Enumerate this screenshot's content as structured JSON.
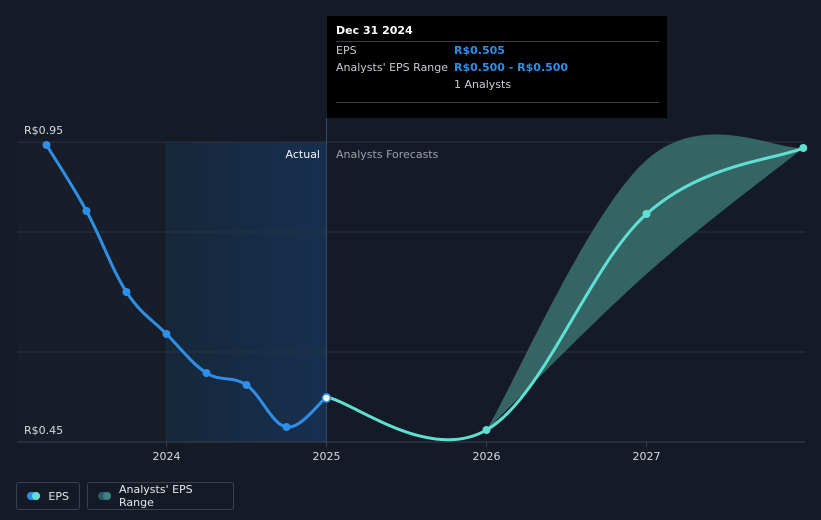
{
  "chart_data": {
    "type": "line",
    "y_axis": {
      "top_label": "R$0.95",
      "bottom_label": "R$0.45",
      "ylim": [
        0.45,
        0.95
      ]
    },
    "x_axis": {
      "ticks": [
        "2024",
        "2025",
        "2026",
        "2027"
      ],
      "xlim": [
        2023.3,
        2027.98
      ]
    },
    "regions": {
      "actual_label": "Actual",
      "forecast_label": "Analysts Forecasts",
      "divider_x": 2025.0,
      "shade_start_x": 2024.0
    },
    "series": [
      {
        "name": "EPS",
        "kind": "actual",
        "color": "#2f8fe6",
        "points": [
          {
            "x": 2023.25,
            "y": 0.925
          },
          {
            "x": 2023.5,
            "y": 0.815
          },
          {
            "x": 2023.75,
            "y": 0.68
          },
          {
            "x": 2024.0,
            "y": 0.61
          },
          {
            "x": 2024.25,
            "y": 0.545
          },
          {
            "x": 2024.5,
            "y": 0.525
          },
          {
            "x": 2024.75,
            "y": 0.455
          },
          {
            "x": 2025.0,
            "y": 0.505
          }
        ]
      },
      {
        "name": "EPS",
        "kind": "forecast",
        "color": "#5fe0d3",
        "points": [
          {
            "x": 2025.0,
            "y": 0.505
          },
          {
            "x": 2026.0,
            "y": 0.45
          },
          {
            "x": 2027.0,
            "y": 0.81
          },
          {
            "x": 2027.98,
            "y": 0.92
          }
        ]
      },
      {
        "name": "Analysts' EPS Range",
        "kind": "band",
        "color": "#3f7f7a",
        "upper": [
          {
            "x": 2026.0,
            "y": 0.45
          },
          {
            "x": 2027.0,
            "y": 0.9
          },
          {
            "x": 2027.98,
            "y": 0.92
          }
        ],
        "lower": [
          {
            "x": 2026.0,
            "y": 0.45
          },
          {
            "x": 2027.0,
            "y": 0.71
          },
          {
            "x": 2027.98,
            "y": 0.92
          }
        ]
      }
    ],
    "grid": true
  },
  "tooltip": {
    "date": "Dec 31 2024",
    "eps_label": "EPS",
    "eps_value": "R$0.505",
    "range_label": "Analysts' EPS Range",
    "range_value": "R$0.500 - R$0.500",
    "analysts": "1 Analysts"
  },
  "legend": {
    "eps": "EPS",
    "range": "Analysts' EPS Range"
  }
}
